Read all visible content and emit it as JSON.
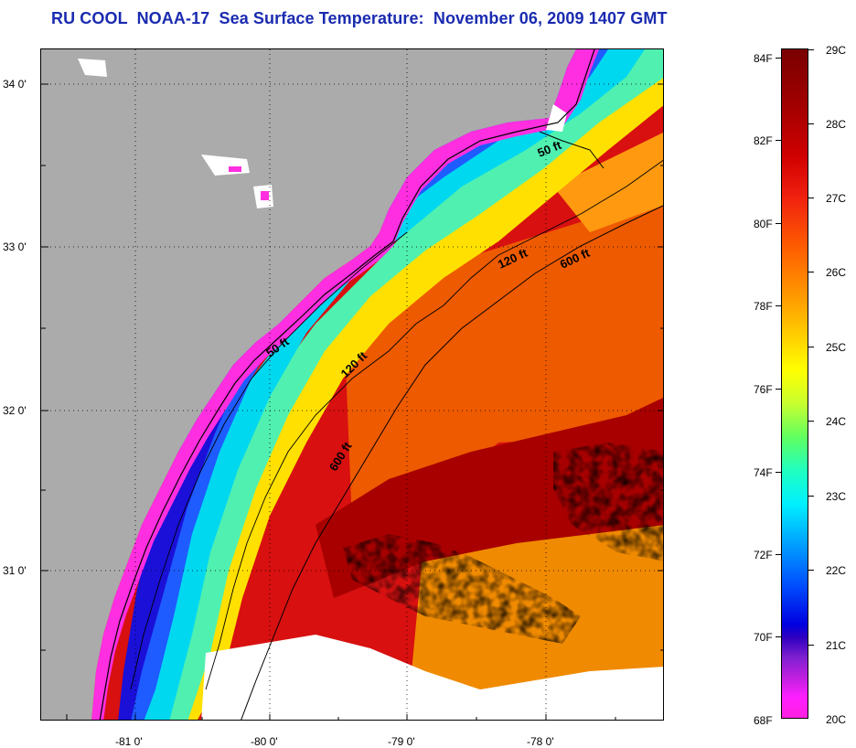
{
  "title": "RU COOL  NOAA-17  Sea Surface Temperature:  November 06, 2009 1407 GMT",
  "map": {
    "latitude_labels": [
      "34 0'",
      "33 0'",
      "32 0'",
      "31 0'"
    ],
    "longitude_labels": [
      "-81 0'",
      "-80 0'",
      "-79 0'",
      "-78 0'"
    ],
    "isobath_labels": [
      "50 ft",
      "50 ft",
      "120 ft",
      "120 ft",
      "600 ft",
      "600 ft"
    ],
    "colors": {
      "land": "#ababab",
      "cloud": "#ffffff",
      "coastline": "#000000"
    }
  },
  "colorbar": {
    "fahrenheit_labels": [
      "84F",
      "82F",
      "80F",
      "78F",
      "76F",
      "74F",
      "72F",
      "70F",
      "68F"
    ],
    "celsius_labels": [
      "29C",
      "28C",
      "27C",
      "26C",
      "25C",
      "24C",
      "23C",
      "22C",
      "21C",
      "20C"
    ]
  }
}
